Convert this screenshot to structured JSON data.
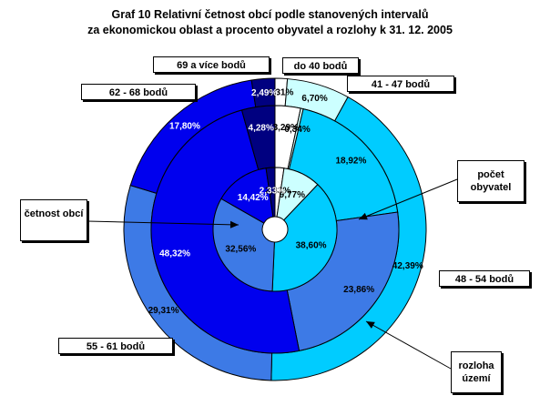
{
  "title_line1": "Graf 10 Relativní četnost obcí podle stanovených intervalů",
  "title_line2": "za ekonomickou oblast a procento obyvatel a rozlohy k 31. 12. 2005",
  "annotations": {
    "population": "počet obyvatel",
    "area": "rozloha území",
    "frequency": "četnost obcí"
  },
  "colors": {
    "do 40 bodů": "#ffffff",
    "41 - 47 bodů": "#ccffff",
    "48 - 54 bodů": "#00ccff",
    "55 - 61 bodů": "#3d7ae6",
    "62 - 68 bodů": "#0000ee",
    "69 a více bodů": "#000080"
  },
  "chart_data": {
    "type": "pie",
    "subtype": "doughnut",
    "title": "Graf 10 Relativní četnost obcí podle stanovených intervalů za ekonomickou oblast a procento obyvatel a rozlohy k 31. 12. 2005",
    "categories": [
      "do 40 bodů",
      "41 - 47 bodů",
      "48 - 54 bodů",
      "55 - 61 bodů",
      "62 - 68 bodů",
      "69 a více bodů"
    ],
    "series": [
      {
        "name": "rozloha území",
        "values": [
          1.31,
          6.7,
          42.39,
          29.31,
          17.8,
          2.49
        ]
      },
      {
        "name": "počet obyvatel",
        "values": [
          3.29,
          0.34,
          18.92,
          23.86,
          48.32,
          4.28
        ]
      },
      {
        "name": "četnost obcí",
        "values": [
          2.33,
          9.77,
          38.6,
          32.56,
          14.42,
          2.33
        ]
      }
    ],
    "labels": {
      "rozloha území": [
        "1,31%",
        "6,70%",
        "42,39%",
        "29,31%",
        "17,80%",
        "2,49%"
      ],
      "počet obyvatel": [
        "3,29%",
        "0,34%",
        "18,92%",
        "23,86%",
        "48,32%",
        "4,28%"
      ],
      "četnost obcí": [
        "2,33%",
        "9,77%",
        "38,60%",
        "32,56%",
        "14,42%",
        "2,33%"
      ]
    }
  }
}
